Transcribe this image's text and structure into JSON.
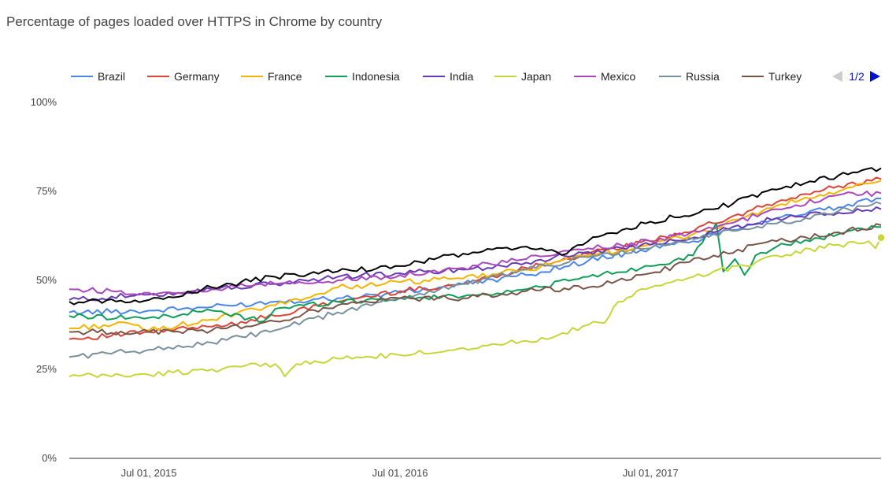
{
  "chart_data": {
    "type": "line",
    "title": "Percentage of pages loaded over HTTPS in Chrome by country",
    "xlabel": "",
    "ylabel": "",
    "x_range": [
      "2015-03-07",
      "2018-06-02"
    ],
    "ylim": [
      0,
      100
    ],
    "y_ticks": [
      {
        "value": 100,
        "label": "100%"
      },
      {
        "value": 75,
        "label": "75%"
      },
      {
        "value": 50,
        "label": "50%"
      },
      {
        "value": 25,
        "label": "25%"
      },
      {
        "value": 0,
        "label": "0%"
      }
    ],
    "x_ticks": [
      {
        "date": "2015-07-01",
        "label": "Jul 01, 2015"
      },
      {
        "date": "2016-07-01",
        "label": "Jul 01, 2016"
      },
      {
        "date": "2017-07-01",
        "label": "Jul 01, 2017"
      }
    ],
    "grid": false,
    "legend": {
      "position": "top",
      "pager": "1/2"
    },
    "series": [
      {
        "name": "Brazil",
        "color": "#4a86e8",
        "points": [
          [
            "2015-03-07",
            41
          ],
          [
            "2015-07-01",
            41.5
          ],
          [
            "2015-10-01",
            42.5
          ],
          [
            "2016-01-01",
            44
          ],
          [
            "2016-04-01",
            45
          ],
          [
            "2016-07-01",
            46.5
          ],
          [
            "2016-10-01",
            49
          ],
          [
            "2017-01-01",
            51.5
          ],
          [
            "2017-04-01",
            55.5
          ],
          [
            "2017-07-01",
            59
          ],
          [
            "2017-09-01",
            61
          ],
          [
            "2017-10-15",
            64
          ],
          [
            "2018-01-01",
            67.5
          ],
          [
            "2018-04-01",
            70.5
          ],
          [
            "2018-06-02",
            73
          ]
        ]
      },
      {
        "name": "Germany",
        "color": "#db4437",
        "points": [
          [
            "2015-03-07",
            33.5
          ],
          [
            "2015-07-01",
            35.5
          ],
          [
            "2015-10-01",
            37
          ],
          [
            "2016-01-01",
            40
          ],
          [
            "2016-04-01",
            44
          ],
          [
            "2016-07-01",
            47
          ],
          [
            "2016-10-01",
            49
          ],
          [
            "2017-01-01",
            53.5
          ],
          [
            "2017-04-01",
            57.5
          ],
          [
            "2017-07-01",
            61
          ],
          [
            "2017-10-01",
            66
          ],
          [
            "2018-01-01",
            72
          ],
          [
            "2018-04-01",
            76.5
          ],
          [
            "2018-06-02",
            78.5
          ]
        ]
      },
      {
        "name": "France",
        "color": "#f4b400",
        "points": [
          [
            "2015-03-07",
            36.5
          ],
          [
            "2015-06-01",
            38
          ],
          [
            "2015-07-01",
            36
          ],
          [
            "2015-10-01",
            39
          ],
          [
            "2016-01-01",
            43
          ],
          [
            "2016-02-15",
            45
          ],
          [
            "2016-04-01",
            48
          ],
          [
            "2016-07-01",
            49.5
          ],
          [
            "2016-10-01",
            50.5
          ],
          [
            "2017-01-01",
            53
          ],
          [
            "2017-04-01",
            57
          ],
          [
            "2017-07-01",
            60
          ],
          [
            "2017-10-01",
            64.5
          ],
          [
            "2018-01-01",
            71
          ],
          [
            "2018-04-01",
            75
          ],
          [
            "2018-06-02",
            78
          ]
        ]
      },
      {
        "name": "Indonesia",
        "color": "#0f9d58",
        "points": [
          [
            "2015-03-07",
            40
          ],
          [
            "2015-07-01",
            39.5
          ],
          [
            "2015-10-01",
            41.5
          ],
          [
            "2015-12-15",
            38.5
          ],
          [
            "2016-01-01",
            42
          ],
          [
            "2016-04-01",
            44
          ],
          [
            "2016-07-01",
            45
          ],
          [
            "2016-10-01",
            45.5
          ],
          [
            "2017-01-01",
            47.5
          ],
          [
            "2017-04-01",
            51
          ],
          [
            "2017-07-01",
            54
          ],
          [
            "2017-09-01",
            57
          ],
          [
            "2017-10-05",
            66
          ],
          [
            "2017-10-15",
            52.5
          ],
          [
            "2017-11-01",
            56
          ],
          [
            "2017-11-15",
            51.5
          ],
          [
            "2017-12-01",
            57
          ],
          [
            "2018-01-01",
            59.5
          ],
          [
            "2018-04-01",
            63
          ],
          [
            "2018-06-02",
            65
          ]
        ]
      },
      {
        "name": "India",
        "color": "#673ab7",
        "points": [
          [
            "2015-03-07",
            44.5
          ],
          [
            "2015-07-01",
            46
          ],
          [
            "2015-10-01",
            47.5
          ],
          [
            "2016-01-01",
            49
          ],
          [
            "2016-04-01",
            51
          ],
          [
            "2016-07-01",
            52
          ],
          [
            "2016-10-01",
            53
          ],
          [
            "2017-01-01",
            55
          ],
          [
            "2017-04-01",
            58
          ],
          [
            "2017-07-01",
            60
          ],
          [
            "2017-10-01",
            63.5
          ],
          [
            "2018-01-01",
            67.5
          ],
          [
            "2018-04-01",
            69
          ],
          [
            "2018-06-02",
            70
          ]
        ]
      },
      {
        "name": "Japan",
        "color": "#c6d639",
        "points": [
          [
            "2015-03-07",
            23
          ],
          [
            "2015-07-01",
            23.5
          ],
          [
            "2015-10-01",
            25
          ],
          [
            "2016-01-01",
            26.5
          ],
          [
            "2016-01-15",
            23
          ],
          [
            "2016-02-01",
            26.5
          ],
          [
            "2016-04-01",
            28
          ],
          [
            "2016-07-01",
            29
          ],
          [
            "2016-10-01",
            31
          ],
          [
            "2017-01-01",
            33
          ],
          [
            "2017-02-15",
            34.5
          ],
          [
            "2017-04-01",
            37.5
          ],
          [
            "2017-04-25",
            38
          ],
          [
            "2017-05-15",
            44
          ],
          [
            "2017-07-01",
            48
          ],
          [
            "2017-08-01",
            49.5
          ],
          [
            "2017-09-01",
            51
          ],
          [
            "2017-10-01",
            52.5
          ],
          [
            "2017-12-01",
            55
          ],
          [
            "2018-01-01",
            57
          ],
          [
            "2018-04-01",
            60
          ],
          [
            "2018-05-15",
            61
          ],
          [
            "2018-05-25",
            59
          ],
          [
            "2018-06-02",
            62
          ]
        ]
      },
      {
        "name": "Mexico",
        "color": "#ab47bc",
        "points": [
          [
            "2015-03-07",
            47.5
          ],
          [
            "2015-07-01",
            46.5
          ],
          [
            "2015-10-01",
            47.5
          ],
          [
            "2016-01-01",
            49
          ],
          [
            "2016-04-01",
            50
          ],
          [
            "2016-07-01",
            51.5
          ],
          [
            "2016-10-01",
            53.5
          ],
          [
            "2017-01-01",
            56
          ],
          [
            "2017-04-01",
            59
          ],
          [
            "2017-07-01",
            61
          ],
          [
            "2017-10-01",
            64.5
          ],
          [
            "2018-01-01",
            70
          ],
          [
            "2018-04-01",
            74
          ],
          [
            "2018-06-02",
            74.5
          ]
        ]
      },
      {
        "name": "Russia",
        "color": "#78909c",
        "points": [
          [
            "2015-03-07",
            28.5
          ],
          [
            "2015-07-01",
            30.5
          ],
          [
            "2015-10-01",
            32.5
          ],
          [
            "2016-01-01",
            36
          ],
          [
            "2016-04-01",
            41
          ],
          [
            "2016-07-01",
            45
          ],
          [
            "2016-10-01",
            49
          ],
          [
            "2017-01-01",
            53
          ],
          [
            "2017-04-01",
            56.5
          ],
          [
            "2017-07-01",
            59
          ],
          [
            "2017-10-01",
            63
          ],
          [
            "2018-01-01",
            66
          ],
          [
            "2018-04-01",
            69.5
          ],
          [
            "2018-06-02",
            71.5
          ]
        ]
      },
      {
        "name": "Turkey",
        "color": "#795548",
        "points": [
          [
            "2015-03-07",
            35.5
          ],
          [
            "2015-07-01",
            35.5
          ],
          [
            "2015-10-01",
            36
          ],
          [
            "2016-01-01",
            38.5
          ],
          [
            "2016-04-01",
            43
          ],
          [
            "2016-07-01",
            45
          ],
          [
            "2016-10-01",
            45
          ],
          [
            "2017-01-01",
            47
          ],
          [
            "2017-04-01",
            48
          ],
          [
            "2017-07-01",
            52
          ],
          [
            "2017-10-01",
            57
          ],
          [
            "2018-01-01",
            61
          ],
          [
            "2018-04-01",
            63.5
          ],
          [
            "2018-06-02",
            65.5
          ]
        ]
      },
      {
        "color": "#000000",
        "points": [
          [
            "2015-03-07",
            44
          ],
          [
            "2015-07-01",
            44.5
          ],
          [
            "2015-10-01",
            48
          ],
          [
            "2016-01-01",
            51
          ],
          [
            "2016-04-01",
            52.5
          ],
          [
            "2016-07-01",
            54
          ],
          [
            "2016-10-01",
            57.5
          ],
          [
            "2017-01-01",
            59.5
          ],
          [
            "2017-03-01",
            57.5
          ],
          [
            "2017-04-01",
            61
          ],
          [
            "2017-07-01",
            66.5
          ],
          [
            "2017-10-01",
            70
          ],
          [
            "2018-01-01",
            75.5
          ],
          [
            "2018-04-01",
            79.5
          ],
          [
            "2018-06-02",
            81.5
          ]
        ]
      }
    ]
  }
}
